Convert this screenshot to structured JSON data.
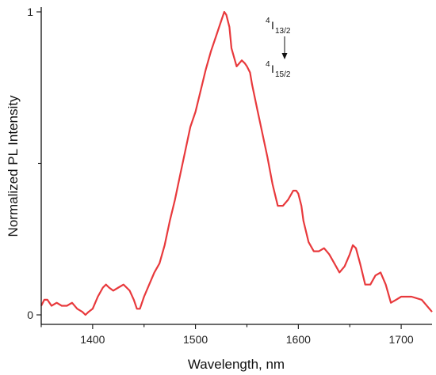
{
  "chart_data": {
    "type": "line",
    "title": "",
    "xlabel": "Wavelength, nm",
    "ylabel": "Normalized PL Intensity",
    "xlim": [
      1350,
      1730
    ],
    "ylim": [
      0,
      1
    ],
    "xticks": [
      "1400",
      "1500",
      "1600",
      "1700"
    ],
    "yticks": [
      "0",
      "1"
    ],
    "grid": false,
    "legend": "none",
    "colors": {
      "line": "#e8393c",
      "axis": "#111111"
    },
    "annotation": {
      "upper": {
        "sup": "4",
        "main": "I",
        "sub": "13/2"
      },
      "lower": {
        "sup": "4",
        "main": "I",
        "sub": "15/2"
      },
      "arrow": "down-arrow"
    },
    "series": [
      {
        "x": [
          1350,
          1353,
          1356,
          1360,
          1365,
          1370,
          1375,
          1380,
          1385,
          1390,
          1393,
          1396,
          1400,
          1405,
          1410,
          1413,
          1416,
          1420,
          1425,
          1430,
          1433,
          1436,
          1440,
          1443,
          1446,
          1450,
          1455,
          1460,
          1465,
          1470,
          1475,
          1480,
          1485,
          1490,
          1495,
          1500,
          1505,
          1510,
          1515,
          1520,
          1525,
          1528,
          1530,
          1533,
          1535,
          1540,
          1545,
          1548,
          1550,
          1553,
          1555,
          1560,
          1565,
          1570,
          1575,
          1580,
          1585,
          1590,
          1595,
          1598,
          1600,
          1603,
          1605,
          1610,
          1615,
          1620,
          1625,
          1630,
          1635,
          1640,
          1645,
          1650,
          1653,
          1656,
          1660,
          1665,
          1670,
          1675,
          1680,
          1685,
          1690,
          1695,
          1700,
          1710,
          1720,
          1730
        ],
        "y": [
          0.03,
          0.05,
          0.05,
          0.03,
          0.04,
          0.03,
          0.03,
          0.04,
          0.02,
          0.01,
          0.0,
          0.01,
          0.02,
          0.06,
          0.09,
          0.1,
          0.09,
          0.08,
          0.09,
          0.1,
          0.09,
          0.08,
          0.05,
          0.02,
          0.02,
          0.06,
          0.1,
          0.14,
          0.17,
          0.23,
          0.31,
          0.38,
          0.46,
          0.54,
          0.62,
          0.67,
          0.74,
          0.81,
          0.87,
          0.92,
          0.97,
          1.0,
          0.99,
          0.95,
          0.88,
          0.82,
          0.84,
          0.83,
          0.82,
          0.8,
          0.76,
          0.68,
          0.6,
          0.52,
          0.43,
          0.36,
          0.36,
          0.38,
          0.41,
          0.41,
          0.4,
          0.36,
          0.31,
          0.24,
          0.21,
          0.21,
          0.22,
          0.2,
          0.17,
          0.14,
          0.16,
          0.2,
          0.23,
          0.22,
          0.17,
          0.1,
          0.1,
          0.13,
          0.14,
          0.1,
          0.04,
          0.05,
          0.06,
          0.06,
          0.05,
          0.01
        ]
      }
    ]
  }
}
